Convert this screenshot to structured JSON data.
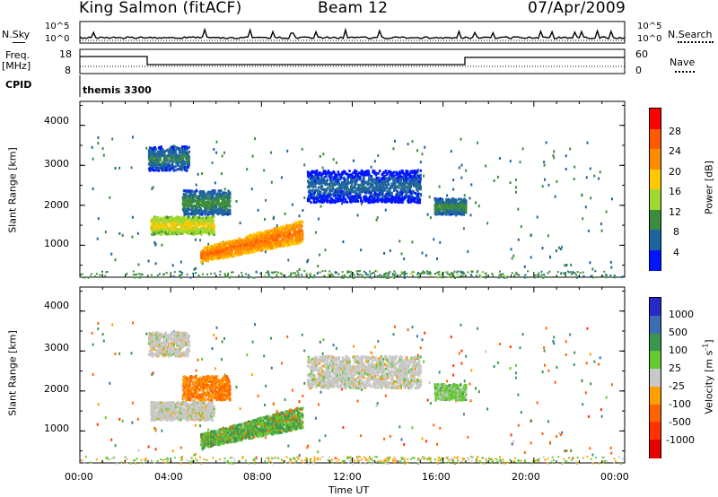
{
  "header": {
    "station": "King Salmon (fitACF)",
    "beam": "Beam 12",
    "date": "07/Apr/2009"
  },
  "top_panel": {
    "left_label": "N.Sky",
    "right_label": "N.Search",
    "ticks_left": [
      "10^5",
      "10^0"
    ],
    "ticks_right": [
      "10^5",
      "10^0"
    ]
  },
  "freq_panel": {
    "left_label_1": "Freq.",
    "left_label_2": "[MHz]",
    "ticks_left": [
      "18",
      "8"
    ],
    "right_label": "Nave",
    "ticks_right": [
      "60",
      "0"
    ]
  },
  "cpid": {
    "label": "CPID",
    "value": "themis 3300"
  },
  "axes": {
    "ylabel": "Slant Range [km]",
    "yticks": [
      "4000",
      "3000",
      "2000",
      "1000"
    ],
    "xticks": [
      "00:00",
      "04:00",
      "08:00",
      "12:00",
      "16:00",
      "20:00",
      "00:00"
    ],
    "xlabel": "Time UT"
  },
  "colorbars": {
    "power": {
      "label": "Power [dB]",
      "ticks": [
        "28",
        "24",
        "20",
        "16",
        "12",
        "8",
        "4"
      ],
      "colors": [
        "#ff0000",
        "#ff5a00",
        "#ff8c00",
        "#ffc800",
        "#a0d832",
        "#3c8c3c",
        "#1e64a0",
        "#0014ff"
      ]
    },
    "velocity": {
      "label": "Velocity [m s",
      "label_sup": "-1",
      "label_end": "]",
      "ticks": [
        "1000",
        "500",
        "100",
        "25",
        "-25",
        "-100",
        "-500",
        "-1000"
      ],
      "colors": [
        "#2828c8",
        "#3c6eb4",
        "#3c9650",
        "#64c832",
        "#c8c8c8",
        "#ffa000",
        "#ff6400",
        "#ff3200",
        "#e60000"
      ]
    }
  },
  "chart_data": [
    {
      "type": "heatmap",
      "title": "Power",
      "xlabel": "Time UT",
      "ylabel": "Slant Range [km]",
      "x_range_hours": [
        0,
        24
      ],
      "ylim_km": [
        200,
        4600
      ],
      "colorbar_range_db": [
        0,
        32
      ],
      "features": [
        {
          "start_h": 3.0,
          "end_h": 4.8,
          "range_lo_km": 2900,
          "range_hi_km": 3500,
          "power_db": 8
        },
        {
          "start_h": 3.1,
          "end_h": 5.9,
          "range_lo_km": 1300,
          "range_hi_km": 1750,
          "power_db": 18
        },
        {
          "start_h": 4.5,
          "end_h": 6.6,
          "range_lo_km": 1800,
          "range_hi_km": 2400,
          "power_db": 10
        },
        {
          "start_h": 5.3,
          "end_h": 9.8,
          "range_lo_km": 600,
          "range_hi_km": 1500,
          "power_db": 26
        },
        {
          "start_h": 10.0,
          "end_h": 15.0,
          "range_lo_km": 2100,
          "range_hi_km": 2900,
          "power_db": 6
        },
        {
          "start_h": 15.6,
          "end_h": 17.0,
          "range_lo_km": 1800,
          "range_hi_km": 2200,
          "power_db": 10
        }
      ]
    },
    {
      "type": "heatmap",
      "title": "Velocity",
      "xlabel": "Time UT",
      "ylabel": "Slant Range [km]",
      "x_range_hours": [
        0,
        24
      ],
      "ylim_km": [
        200,
        4600
      ],
      "colorbar_range_ms": [
        -1000,
        1000
      ],
      "features": [
        {
          "start_h": 3.0,
          "end_h": 4.8,
          "range_lo_km": 2900,
          "range_hi_km": 3500,
          "velocity_ms": 0
        },
        {
          "start_h": 3.1,
          "end_h": 5.9,
          "range_lo_km": 1300,
          "range_hi_km": 1750,
          "velocity_ms": 0
        },
        {
          "start_h": 4.5,
          "end_h": 6.6,
          "range_lo_km": 1800,
          "range_hi_km": 2400,
          "velocity_ms": -100
        },
        {
          "start_h": 5.3,
          "end_h": 9.8,
          "range_lo_km": 600,
          "range_hi_km": 1500,
          "velocity_ms": 100
        },
        {
          "start_h": 10.0,
          "end_h": 15.0,
          "range_lo_km": 2100,
          "range_hi_km": 2900,
          "velocity_ms": 0
        },
        {
          "start_h": 15.6,
          "end_h": 17.0,
          "range_lo_km": 1800,
          "range_hi_km": 2200,
          "velocity_ms": 50
        }
      ]
    }
  ]
}
